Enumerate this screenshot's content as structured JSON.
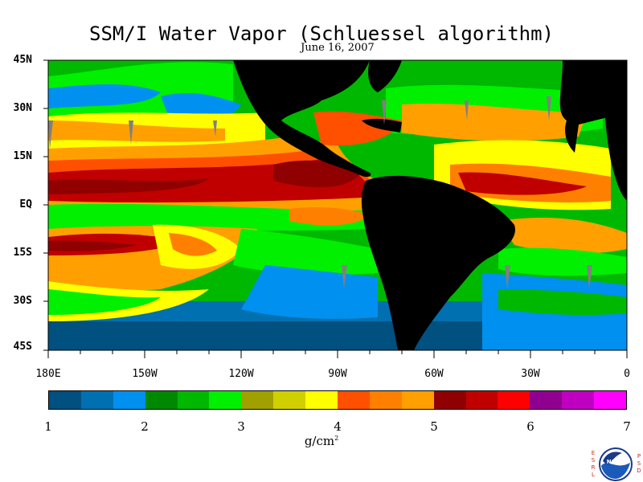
{
  "title": "SSM/I Water Vapor (Schluessel algorithm)",
  "date": "June 16, 2007",
  "lat_labels": [
    "45N",
    "30N",
    "15N",
    "EQ",
    "15S",
    "30S",
    "45S"
  ],
  "lon_labels": [
    "180E",
    "150W",
    "120W",
    "90W",
    "60W",
    "30W",
    "0"
  ],
  "colorbar": {
    "colors": [
      "#005080",
      "#0070b0",
      "#0090f0",
      "#008800",
      "#00b800",
      "#00f000",
      "#a0a000",
      "#d0d000",
      "#ffff00",
      "#ff5000",
      "#ff8000",
      "#ffa000",
      "#900000",
      "#c00000",
      "#ff0000",
      "#900090",
      "#c000c0",
      "#ff00ff"
    ],
    "labels": [
      "1",
      "2",
      "3",
      "4",
      "5",
      "6",
      "7"
    ],
    "units": "g/cm",
    "units_exp": "2"
  },
  "logo": {
    "left_letters": [
      "E",
      "S",
      "R",
      "L"
    ],
    "right_letters": [
      "P",
      "S",
      "D"
    ],
    "badge": "NOAA"
  },
  "colors": {
    "land": "#000000",
    "ocean_cold": "#005080",
    "ocean_warm": "#c00000"
  }
}
